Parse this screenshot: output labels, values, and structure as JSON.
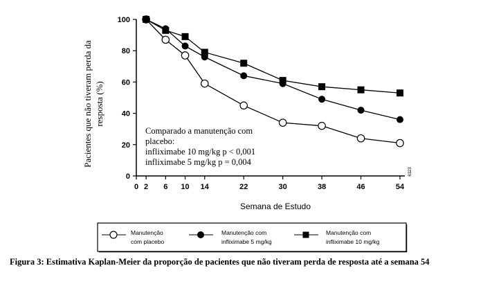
{
  "chart_data": {
    "type": "line",
    "x": [
      0,
      2,
      6,
      10,
      14,
      22,
      30,
      38,
      46,
      54
    ],
    "xlabel": "Semana  de Estudo",
    "ylabel_line1": "Pacientes que não tiveram perda da",
    "ylabel_line2": "resposta (%)",
    "xticks": [
      0,
      2,
      6,
      10,
      14,
      22,
      30,
      38,
      46,
      54
    ],
    "yticks": [
      0,
      20,
      40,
      60,
      80,
      100
    ],
    "xlim": [
      0,
      54
    ],
    "ylim": [
      0,
      100
    ],
    "grid": false,
    "series": [
      {
        "name": "Manutenção com placebo",
        "name_line1": "Manutenção",
        "name_line2": "com placebo",
        "marker": "open-circle",
        "points": [
          [
            2,
            100
          ],
          [
            6,
            87
          ],
          [
            10,
            77
          ],
          [
            14,
            59
          ],
          [
            22,
            45
          ],
          [
            30,
            34
          ],
          [
            38,
            32
          ],
          [
            46,
            24
          ],
          [
            54,
            21
          ]
        ]
      },
      {
        "name": "Manutenção com infliximabe 5 mg/kg",
        "name_line1": "Manutenção com",
        "name_line2": "infliximabe 5 mg/kg",
        "marker": "filled-circle",
        "points": [
          [
            2,
            100
          ],
          [
            6,
            94
          ],
          [
            10,
            83
          ],
          [
            14,
            76
          ],
          [
            22,
            64
          ],
          [
            30,
            59
          ],
          [
            38,
            49
          ],
          [
            46,
            42
          ],
          [
            54,
            36
          ]
        ]
      },
      {
        "name": "Manutenção com infliximabe 10 mg/kg",
        "name_line1": "Manutenção com",
        "name_line2": "infliximabe 10 mg/kg",
        "marker": "filled-square",
        "points": [
          [
            2,
            100
          ],
          [
            6,
            93
          ],
          [
            10,
            89
          ],
          [
            14,
            79
          ],
          [
            22,
            72
          ],
          [
            30,
            61
          ],
          [
            38,
            57
          ],
          [
            46,
            55
          ],
          [
            54,
            53
          ]
        ]
      }
    ],
    "annotation": [
      "Comparado a manutenção com",
      "placebo:",
      "infliximabe 10 mg/kg p < 0,001",
      "infliximabe 5 mg/kg   p = 0,004"
    ],
    "code": "6323",
    "legend_placement": "bottom"
  },
  "caption": "Figura 3: Estimativa Kaplan-Meier da proporção de pacientes que não tiveram perda de resposta até a semana 54"
}
